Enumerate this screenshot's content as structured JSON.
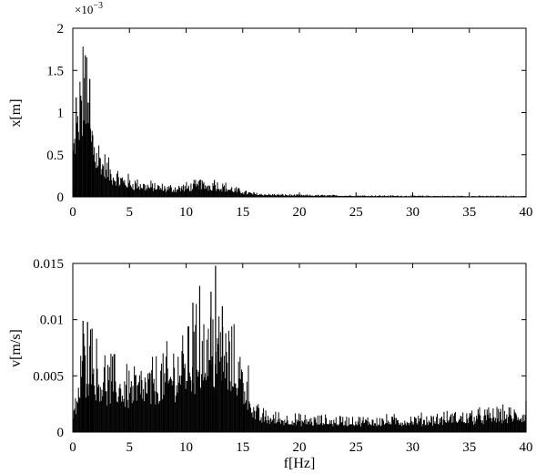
{
  "chart_data": [
    {
      "type": "bar",
      "style": "spectrum",
      "xlabel": "",
      "ylabel": "x[m]",
      "y_exponent_label": "×10",
      "y_exponent_power": "−3",
      "xlim": [
        0,
        40
      ],
      "ylim": [
        0,
        2
      ],
      "xticks": [
        "0",
        "5",
        "10",
        "15",
        "20",
        "25",
        "30",
        "35",
        "40"
      ],
      "yticks": [
        "0",
        "0.5",
        "1",
        "1.5",
        "2"
      ],
      "grid": false,
      "bar_color": "#000000",
      "envelope": {
        "f": [
          0.1,
          0.3,
          0.5,
          0.7,
          0.9,
          1.1,
          1.3,
          1.6,
          2.0,
          2.5,
          3.0,
          3.5,
          4.0,
          5.0,
          6.0,
          7.0,
          8.0,
          9.0,
          10.0,
          11.0,
          12.0,
          13.0,
          14.0,
          15.0,
          16.0,
          17.0,
          20.0,
          25.0,
          30.0,
          35.0,
          40.0
        ],
        "amplitude": [
          0.6,
          0.8,
          0.95,
          1.05,
          1.25,
          1.3,
          1.1,
          0.85,
          0.65,
          0.45,
          0.34,
          0.28,
          0.24,
          0.18,
          0.15,
          0.13,
          0.11,
          0.11,
          0.12,
          0.14,
          0.15,
          0.14,
          0.1,
          0.06,
          0.04,
          0.03,
          0.02,
          0.015,
          0.012,
          0.01,
          0.01
        ]
      },
      "peaks": [
        {
          "f": 1.1,
          "value": 1.68
        },
        {
          "f": 0.3,
          "value": 1.18
        },
        {
          "f": 0.7,
          "value": 1.2
        },
        {
          "f": 1.5,
          "value": 1.4
        },
        {
          "f": 12.5,
          "value": 0.2
        },
        {
          "f": 11.2,
          "value": 0.2
        }
      ]
    },
    {
      "type": "bar",
      "style": "spectrum",
      "xlabel": "f[Hz]",
      "ylabel": "v[m/s]",
      "xlim": [
        0,
        40
      ],
      "ylim": [
        0,
        0.015
      ],
      "xticks": [
        "0",
        "5",
        "10",
        "15",
        "20",
        "25",
        "30",
        "35",
        "40"
      ],
      "yticks": [
        "0",
        "0.005",
        "0.01",
        "0.015"
      ],
      "grid": false,
      "bar_color": "#000000",
      "envelope": {
        "f": [
          0.1,
          0.5,
          1.0,
          1.5,
          2.0,
          3.0,
          4.0,
          5.0,
          6.0,
          7.0,
          8.0,
          9.0,
          10.0,
          11.0,
          12.0,
          12.8,
          13.5,
          14.5,
          15.5,
          16.0,
          17.0,
          20.0,
          25.0,
          30.0,
          35.0,
          38.0,
          40.0
        ],
        "amplitude": [
          0.0015,
          0.004,
          0.0065,
          0.0068,
          0.0058,
          0.005,
          0.0045,
          0.0042,
          0.0042,
          0.0045,
          0.005,
          0.0058,
          0.0068,
          0.0075,
          0.0078,
          0.008,
          0.0072,
          0.006,
          0.0042,
          0.0018,
          0.0014,
          0.0011,
          0.001,
          0.0011,
          0.0014,
          0.0016,
          0.0016
        ]
      },
      "peaks": [
        {
          "f": 12.6,
          "value": 0.0148
        },
        {
          "f": 11.2,
          "value": 0.013
        },
        {
          "f": 12.2,
          "value": 0.0125
        },
        {
          "f": 10.6,
          "value": 0.0115
        },
        {
          "f": 0.9,
          "value": 0.0099
        },
        {
          "f": 1.3,
          "value": 0.0098
        },
        {
          "f": 1.7,
          "value": 0.0092
        },
        {
          "f": 13.2,
          "value": 0.0112
        },
        {
          "f": 40.0,
          "value": 0.0028
        }
      ]
    }
  ]
}
